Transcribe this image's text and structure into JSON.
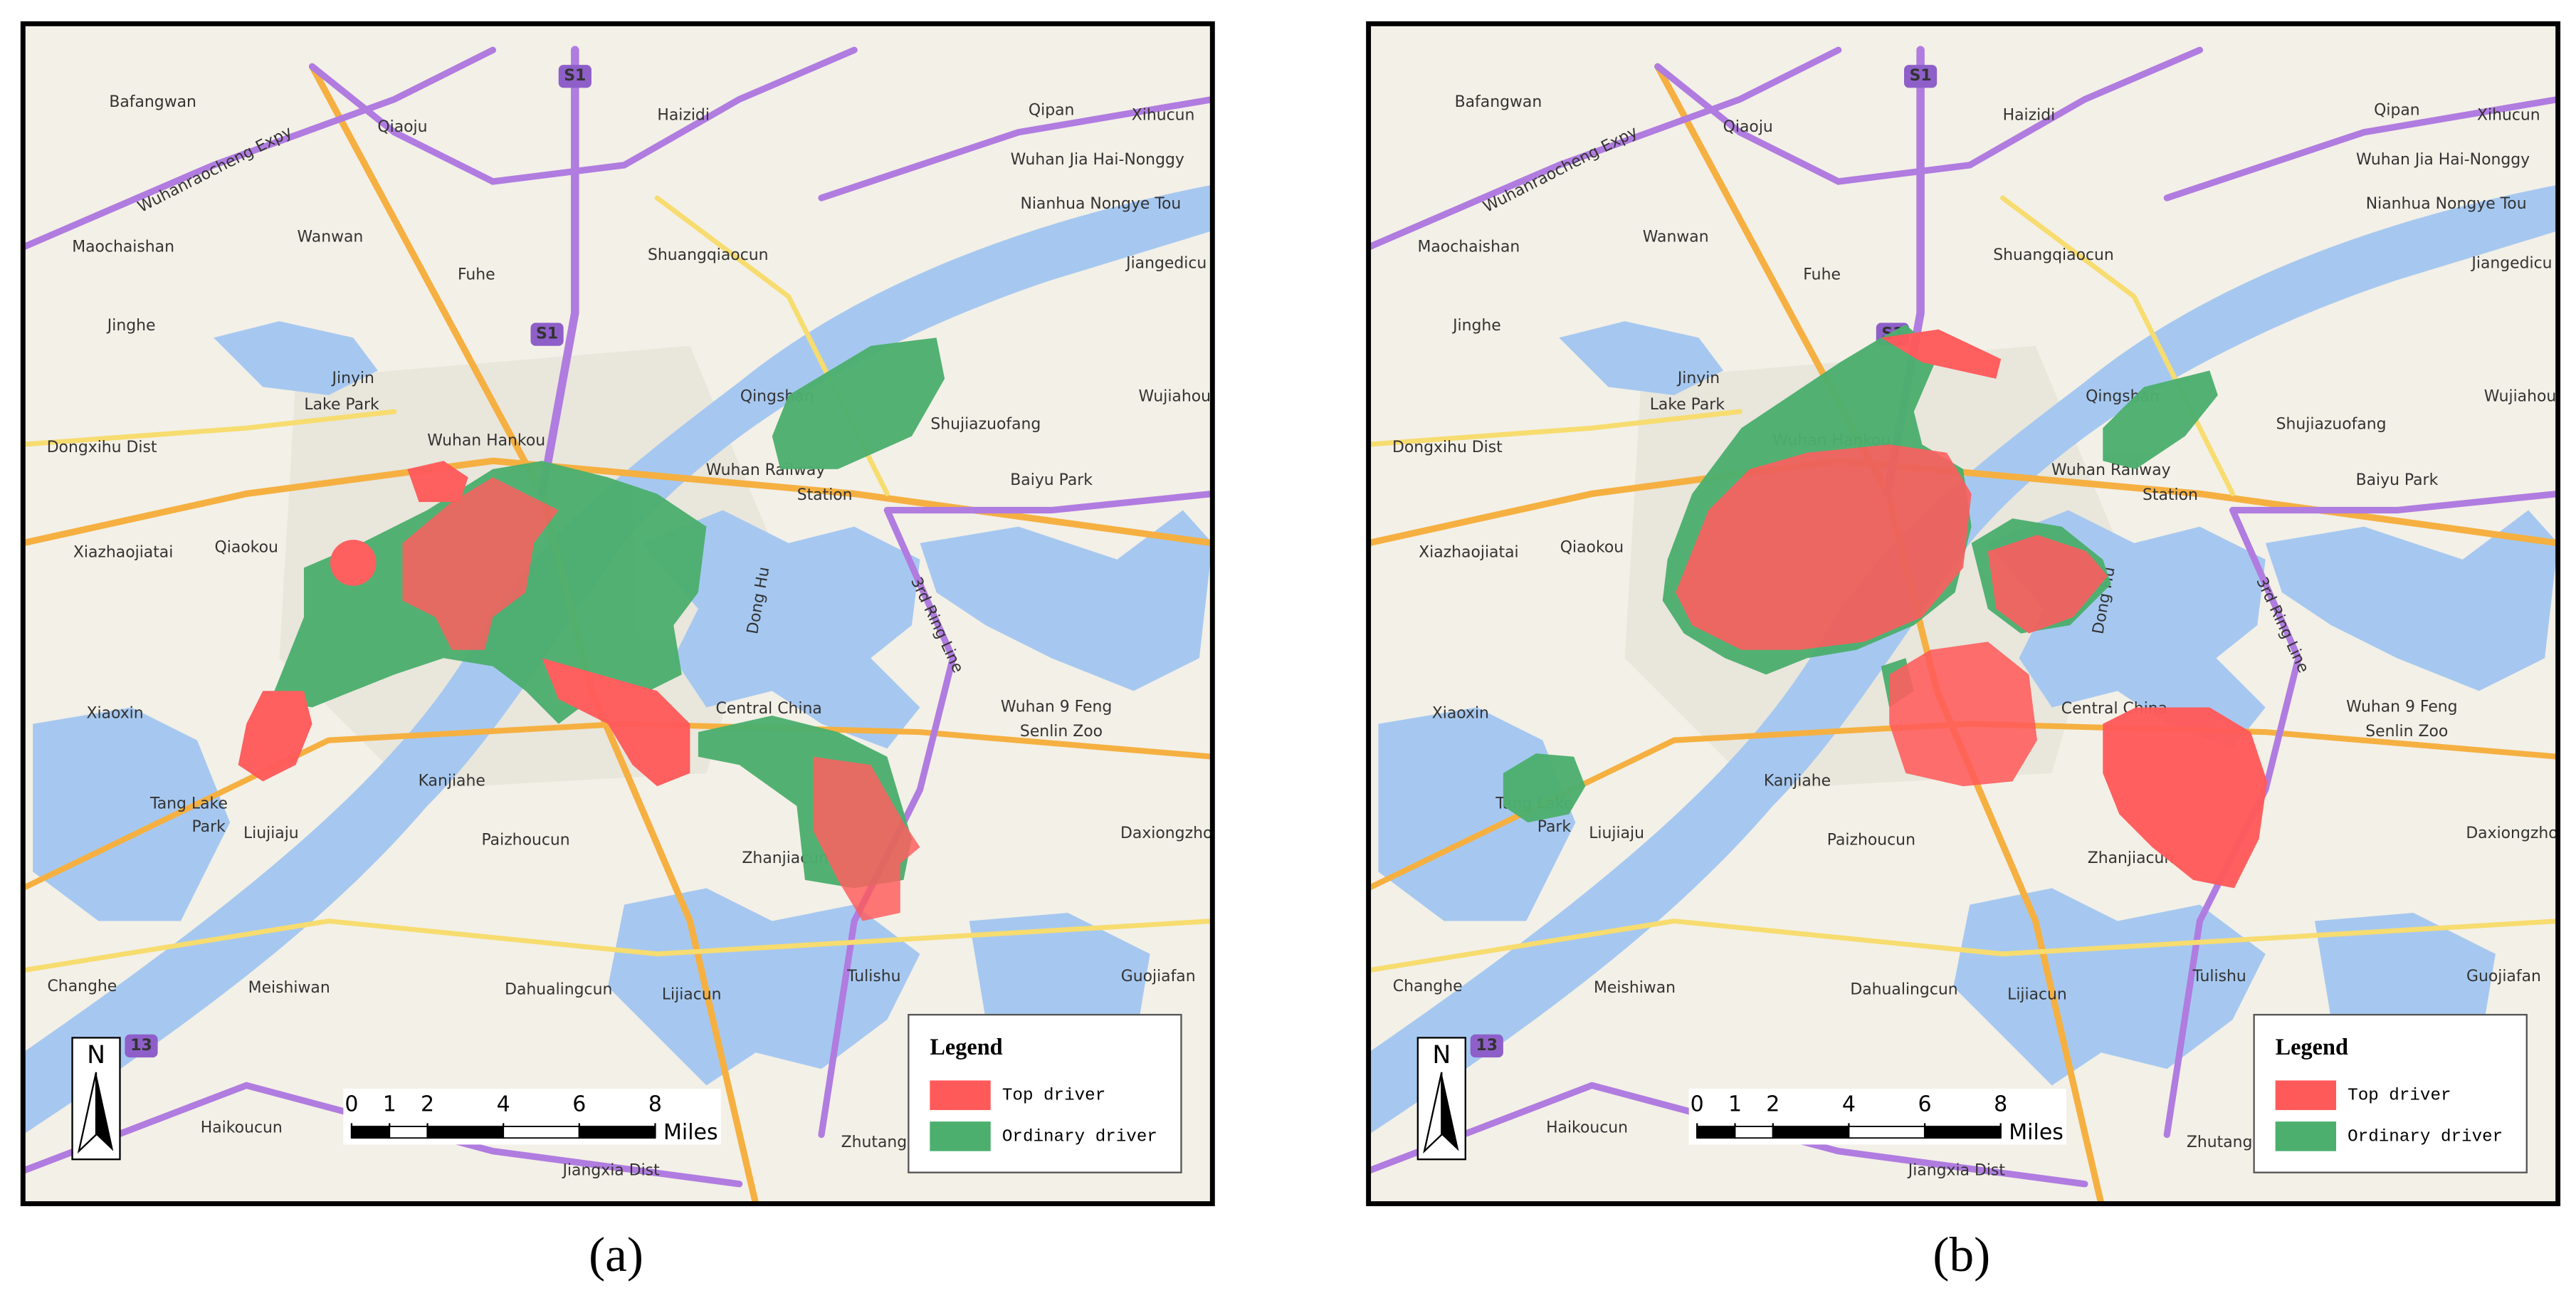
{
  "panels": [
    {
      "caption": "(a)",
      "north": "N",
      "legend": {
        "title": "Legend",
        "items": [
          {
            "label": "Top driver",
            "color": "#ff5a5a"
          },
          {
            "label": "Ordinary driver",
            "color": "#4caf6e"
          }
        ]
      },
      "scale": {
        "ticks": [
          0,
          1,
          2,
          4,
          6,
          8
        ],
        "unit": "Miles"
      }
    },
    {
      "caption": "(b)",
      "north": "N",
      "legend": {
        "title": "Legend",
        "items": [
          {
            "label": "Top driver",
            "color": "#ff5a5a"
          },
          {
            "label": "Ordinary driver",
            "color": "#4caf6e"
          }
        ]
      },
      "scale": {
        "ticks": [
          0,
          1,
          2,
          4,
          6,
          8
        ],
        "unit": "Miles"
      }
    }
  ],
  "map": {
    "places": [
      {
        "text": "Bafangwan"
      },
      {
        "text": "Qiaoju"
      },
      {
        "text": "Haizidi"
      },
      {
        "text": "Qipan"
      },
      {
        "text": "Xihucun"
      },
      {
        "text": "Wuhan Jia Hai-Nonggy"
      },
      {
        "text": "Nianhua Nongye Tou"
      },
      {
        "text": "Maochaishan"
      },
      {
        "text": "Wanwan"
      },
      {
        "text": "Shuangqiaocun"
      },
      {
        "text": "Jiangedicu"
      },
      {
        "text": "Fuhe"
      },
      {
        "text": "Jinghe"
      },
      {
        "text": "Jinyin",
        "color": "#1a8a3a"
      },
      {
        "text": "Lake Park",
        "color": "#1a8a3a"
      },
      {
        "text": "Qingshan"
      },
      {
        "text": "Shujiazuofang"
      },
      {
        "text": "Wujiahou"
      },
      {
        "text": "Dongxihu Dist"
      },
      {
        "text": "Wuhan Hankou"
      },
      {
        "text": "Wuhan Railway"
      },
      {
        "text": "Station"
      },
      {
        "text": "Baiyu Park",
        "color": "#1a8a3a"
      },
      {
        "text": "Xiazhaojiatai"
      },
      {
        "text": "Qiaokou"
      },
      {
        "text": "Xiaoxin"
      },
      {
        "text": "Central China"
      },
      {
        "text": "Wuhan 9 Feng",
        "color": "#1a8a3a"
      },
      {
        "text": "Senlin Zoo",
        "color": "#1a8a3a"
      },
      {
        "text": "Tang Lake",
        "color": "#1a8a3a"
      },
      {
        "text": "Park",
        "color": "#1a8a3a"
      },
      {
        "text": "Liujiaju"
      },
      {
        "text": "Kanjiahe"
      },
      {
        "text": "Paizhoucun"
      },
      {
        "text": "Zhanjiacun"
      },
      {
        "text": "Daxiongzho"
      },
      {
        "text": "Changhe"
      },
      {
        "text": "Meishiwan"
      },
      {
        "text": "Dahualingcun"
      },
      {
        "text": "Lijiacun"
      },
      {
        "text": "Tulishu"
      },
      {
        "text": "Guojiafan"
      },
      {
        "text": "Haikoucun"
      },
      {
        "text": "Jiangxia Dist"
      },
      {
        "text": "Zhutang"
      },
      {
        "text": "Dong Hu"
      },
      {
        "text": "3rd Ring Line"
      },
      {
        "text": "Wuhanraocheng Expy"
      },
      {
        "text": "S1"
      },
      {
        "text": "S1"
      },
      {
        "text": "13"
      }
    ]
  }
}
